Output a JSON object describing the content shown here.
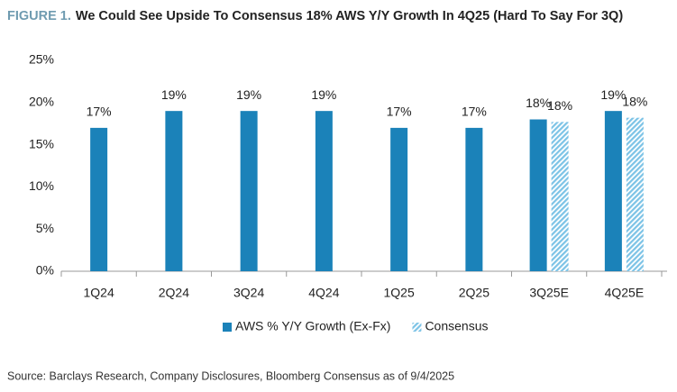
{
  "chart_data": {
    "type": "bar",
    "title_label": "FIGURE 1.",
    "title": "We Could See Upside To Consensus 18% AWS Y/Y Growth In 4Q25 (Hard To Say For 3Q)",
    "categories": [
      "1Q24",
      "2Q24",
      "3Q24",
      "4Q24",
      "1Q25",
      "2Q25",
      "3Q25E",
      "4Q25E"
    ],
    "series": [
      {
        "name": "AWS % Y/Y Growth (Ex-Fx)",
        "color": "#1b82b9",
        "pattern": "solid",
        "values": [
          17,
          19,
          19,
          19,
          17,
          17,
          18,
          19
        ],
        "value_labels": [
          "17%",
          "19%",
          "19%",
          "19%",
          "17%",
          "17%",
          "18%",
          "19%"
        ]
      },
      {
        "name": "Consensus",
        "color": "#7cc3e6",
        "pattern": "hatch",
        "values": [
          null,
          null,
          null,
          null,
          null,
          null,
          17.7,
          18.2
        ],
        "value_labels": [
          null,
          null,
          null,
          null,
          null,
          null,
          "18%",
          "18%"
        ]
      }
    ],
    "ylim": [
      0,
      25
    ],
    "yticks": [
      {
        "value": 0,
        "label": "0%"
      },
      {
        "value": 5,
        "label": "5%"
      },
      {
        "value": 10,
        "label": "10%"
      },
      {
        "value": 15,
        "label": "15%"
      },
      {
        "value": 20,
        "label": "20%"
      },
      {
        "value": 25,
        "label": "25%"
      }
    ],
    "grid": false,
    "legend": "bottom",
    "source": "Source: Barclays Research, Company Disclosures, Bloomberg Consensus as of 9/4/2025"
  }
}
